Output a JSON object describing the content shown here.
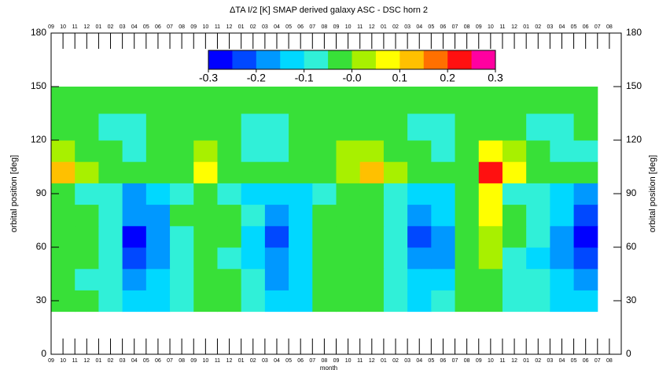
{
  "chart_data": {
    "type": "heatmap",
    "title": "ΔTA I/2 [K] SMAP derived galaxy     ASC - DSC horn 2",
    "xlabel": "month",
    "ylabel": "orbital position [deg]",
    "xlim": [
      0,
      48
    ],
    "xticks": [
      {
        "value": 0,
        "label": "09"
      },
      {
        "value": 1,
        "label": "10"
      },
      {
        "value": 2,
        "label": "11"
      },
      {
        "value": 3,
        "label": "12"
      },
      {
        "value": 4,
        "label": "01"
      },
      {
        "value": 5,
        "label": "02"
      },
      {
        "value": 6,
        "label": "03"
      },
      {
        "value": 7,
        "label": "04"
      },
      {
        "value": 8,
        "label": "05"
      },
      {
        "value": 9,
        "label": "06"
      },
      {
        "value": 10,
        "label": "07"
      },
      {
        "value": 11,
        "label": "08"
      },
      {
        "value": 12,
        "label": "09"
      },
      {
        "value": 13,
        "label": "10"
      },
      {
        "value": 14,
        "label": "11"
      },
      {
        "value": 15,
        "label": "12"
      },
      {
        "value": 16,
        "label": "01"
      },
      {
        "value": 17,
        "label": "02"
      },
      {
        "value": 18,
        "label": "03"
      },
      {
        "value": 19,
        "label": "04"
      },
      {
        "value": 20,
        "label": "05"
      },
      {
        "value": 21,
        "label": "06"
      },
      {
        "value": 22,
        "label": "07"
      },
      {
        "value": 23,
        "label": "08"
      },
      {
        "value": 24,
        "label": "09"
      },
      {
        "value": 25,
        "label": "10"
      },
      {
        "value": 26,
        "label": "11"
      },
      {
        "value": 27,
        "label": "12"
      },
      {
        "value": 28,
        "label": "01"
      },
      {
        "value": 29,
        "label": "02"
      },
      {
        "value": 30,
        "label": "03"
      },
      {
        "value": 31,
        "label": "04"
      },
      {
        "value": 32,
        "label": "05"
      },
      {
        "value": 33,
        "label": "06"
      },
      {
        "value": 34,
        "label": "07"
      },
      {
        "value": 35,
        "label": "08"
      },
      {
        "value": 36,
        "label": "09"
      },
      {
        "value": 37,
        "label": "10"
      },
      {
        "value": 38,
        "label": "11"
      },
      {
        "value": 39,
        "label": "12"
      },
      {
        "value": 40,
        "label": "01"
      },
      {
        "value": 41,
        "label": "02"
      },
      {
        "value": 42,
        "label": "03"
      },
      {
        "value": 43,
        "label": "04"
      },
      {
        "value": 44,
        "label": "05"
      },
      {
        "value": 45,
        "label": "06"
      },
      {
        "value": 46,
        "label": "07"
      },
      {
        "value": 47,
        "label": "08"
      }
    ],
    "ylim": [
      0,
      180
    ],
    "yticks": [
      0,
      30,
      60,
      90,
      120,
      150,
      180
    ],
    "x_bins": [
      0,
      2,
      4,
      6,
      8,
      10,
      12,
      14,
      16,
      18,
      20,
      22,
      24,
      26,
      28,
      30,
      32,
      34,
      36,
      38,
      40,
      42,
      44,
      46
    ],
    "y_bins": [
      24,
      36,
      48,
      60,
      72,
      84,
      96,
      108,
      120,
      135,
      150
    ],
    "z": [
      [
        -0.04,
        -0.05,
        -0.07,
        -0.12,
        -0.13,
        -0.06,
        -0.03,
        -0.05,
        -0.08,
        -0.12,
        -0.11,
        -0.05,
        -0.03,
        -0.04,
        -0.08,
        -0.12,
        -0.1,
        -0.05,
        -0.03,
        -0.06,
        -0.08,
        -0.12,
        -0.13
      ],
      [
        -0.03,
        -0.06,
        -0.09,
        -0.16,
        -0.15,
        -0.07,
        -0.03,
        -0.05,
        -0.1,
        -0.16,
        -0.12,
        -0.04,
        -0.02,
        -0.04,
        -0.09,
        -0.15,
        -0.13,
        -0.04,
        -0.02,
        -0.06,
        -0.1,
        -0.15,
        -0.17
      ],
      [
        -0.03,
        -0.05,
        -0.1,
        -0.22,
        -0.18,
        -0.07,
        -0.02,
        -0.06,
        -0.12,
        -0.2,
        -0.14,
        -0.04,
        -0.02,
        -0.05,
        -0.1,
        -0.18,
        -0.16,
        -0.04,
        0.0,
        -0.06,
        -0.11,
        -0.18,
        -0.22
      ],
      [
        -0.02,
        -0.04,
        -0.09,
        -0.26,
        -0.2,
        -0.06,
        -0.02,
        -0.05,
        -0.11,
        -0.24,
        -0.14,
        -0.04,
        -0.02,
        -0.04,
        -0.1,
        -0.22,
        -0.17,
        -0.03,
        0.03,
        -0.05,
        -0.1,
        -0.19,
        -0.26
      ],
      [
        -0.02,
        -0.04,
        -0.07,
        -0.2,
        -0.17,
        -0.05,
        -0.01,
        -0.04,
        -0.08,
        -0.2,
        -0.12,
        -0.03,
        -0.01,
        -0.03,
        -0.08,
        -0.2,
        -0.14,
        -0.02,
        0.08,
        -0.04,
        -0.07,
        -0.15,
        -0.21
      ],
      [
        -0.03,
        -0.06,
        -0.08,
        -0.16,
        -0.13,
        -0.07,
        -0.05,
        -0.08,
        -0.12,
        -0.14,
        -0.11,
        -0.06,
        -0.03,
        -0.05,
        -0.09,
        -0.13,
        -0.12,
        -0.04,
        0.08,
        -0.06,
        -0.09,
        -0.12,
        -0.16
      ],
      [
        0.13,
        0.02,
        -0.02,
        -0.05,
        -0.04,
        -0.01,
        0.07,
        -0.02,
        -0.04,
        -0.05,
        -0.04,
        -0.01,
        0.03,
        0.12,
        0.0,
        -0.03,
        -0.05,
        -0.02,
        0.21,
        0.06,
        -0.02,
        -0.04,
        -0.05
      ],
      [
        0.03,
        -0.01,
        -0.04,
        -0.06,
        -0.05,
        -0.03,
        0.02,
        -0.03,
        -0.06,
        -0.08,
        -0.05,
        -0.02,
        0.0,
        0.04,
        -0.02,
        -0.04,
        -0.07,
        -0.03,
        0.08,
        0.0,
        -0.03,
        -0.06,
        -0.06
      ],
      [
        -0.02,
        -0.03,
        -0.06,
        -0.08,
        -0.04,
        -0.02,
        -0.02,
        -0.05,
        -0.08,
        -0.09,
        -0.04,
        -0.02,
        -0.01,
        -0.03,
        -0.05,
        -0.08,
        -0.07,
        -0.02,
        -0.01,
        -0.03,
        -0.06,
        -0.07,
        -0.04
      ],
      [
        -0.01,
        -0.02,
        -0.03,
        -0.04,
        -0.02,
        -0.01,
        -0.02,
        -0.03,
        -0.04,
        -0.03,
        -0.02,
        -0.01,
        -0.02,
        -0.02,
        -0.03,
        -0.04,
        -0.03,
        -0.02,
        -0.01,
        -0.02,
        -0.03,
        -0.02,
        -0.02
      ]
    ],
    "levels": [
      -0.3,
      -0.25,
      -0.2,
      -0.15,
      -0.1,
      -0.05,
      0,
      0.05,
      0.1,
      0.15,
      0.2,
      0.25,
      0.3
    ],
    "colors": [
      "#0000ff",
      "#0048ff",
      "#0098ff",
      "#00d8ff",
      "#30f0d8",
      "#38e038",
      "#a8f000",
      "#ffff00",
      "#ffc000",
      "#ff7000",
      "#ff1010",
      "#ff00a0"
    ],
    "cticks": [
      -0.3,
      -0.2,
      -0.1,
      {
        "value": 0,
        "label": "-0.0"
      },
      0.1,
      0.2,
      0.3
    ]
  }
}
